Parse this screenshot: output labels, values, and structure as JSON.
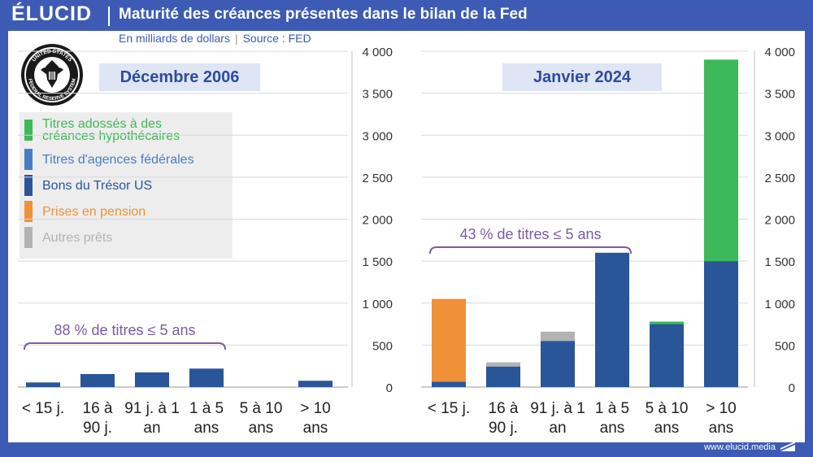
{
  "header": {
    "logo": "ÉLUCID",
    "title": "Maturité des créances présentes dans le bilan de la Fed"
  },
  "subtitle": {
    "unit": "En milliards de dollars",
    "separator": "|",
    "source": "Source : FED"
  },
  "footer": {
    "url": "www.elucid.media"
  },
  "seal": {
    "text_top": "UNITED STATES",
    "text_bottom": "FEDERAL RESERVE SYSTEM"
  },
  "colors": {
    "mbs": "#3cb95a",
    "agency": "#4a7cc4",
    "treasury": "#2a5598",
    "repo": "#f0913a",
    "other": "#b3b3b3",
    "annotation": "#7b5aa6",
    "period_bg": "#dfe5f5",
    "brand": "#3d5bb5"
  },
  "legend": [
    {
      "key": "mbs",
      "label_line1": "Titres adossés à des",
      "label_line2": "créances hypothécaires"
    },
    {
      "key": "agency",
      "label_line1": "Titres d'agences fédérales",
      "label_line2": ""
    },
    {
      "key": "treasury",
      "label_line1": "Bons du Trésor US",
      "label_line2": ""
    },
    {
      "key": "repo",
      "label_line1": "Prises en pension",
      "label_line2": ""
    },
    {
      "key": "other",
      "label_line1": "Autres prêts",
      "label_line2": ""
    }
  ],
  "chart_data": [
    {
      "type": "bar",
      "stacked": true,
      "title": "Décembre 2006",
      "ylim": [
        0,
        4000
      ],
      "yticks": [
        0,
        500,
        1000,
        1500,
        2000,
        2500,
        3000,
        3500,
        4000
      ],
      "ytick_labels": [
        "0",
        "500",
        "1 000",
        "1 500",
        "2 000",
        "2 500",
        "3 000",
        "3 500",
        "4 000"
      ],
      "categories": [
        [
          "< 15 j.",
          ""
        ],
        [
          "16 à",
          "90 j."
        ],
        [
          "91 j. à 1",
          "an"
        ],
        [
          "1 à 5",
          "ans"
        ],
        [
          "5 à 10",
          "ans"
        ],
        [
          "> 10",
          "ans"
        ]
      ],
      "series": [
        {
          "name": "Bons du Trésor US",
          "key": "treasury",
          "values": [
            55,
            155,
            175,
            220,
            0,
            75
          ]
        },
        {
          "name": "Titres d'agences fédérales",
          "key": "agency",
          "values": [
            0,
            0,
            0,
            0,
            0,
            0
          ]
        },
        {
          "name": "Titres adossés à des créances hypothécaires",
          "key": "mbs",
          "values": [
            0,
            0,
            0,
            0,
            0,
            0
          ]
        },
        {
          "name": "Prises en pension",
          "key": "repo",
          "values": [
            0,
            0,
            0,
            0,
            0,
            0
          ]
        },
        {
          "name": "Autres prêts",
          "key": "other",
          "values": [
            0,
            0,
            0,
            0,
            0,
            0
          ]
        }
      ],
      "annotation": {
        "text": "88 % de titres ≤ 5 ans",
        "from_category": 0,
        "to_category": 3
      }
    },
    {
      "type": "bar",
      "stacked": true,
      "title": "Janvier 2024",
      "ylim": [
        0,
        4000
      ],
      "yticks": [
        0,
        500,
        1000,
        1500,
        2000,
        2500,
        3000,
        3500,
        4000
      ],
      "ytick_labels": [
        "0",
        "500",
        "1 000",
        "1 500",
        "2 000",
        "2 500",
        "3 000",
        "3 500",
        "4 000"
      ],
      "categories": [
        [
          "< 15 j.",
          ""
        ],
        [
          "16 à",
          "90 j."
        ],
        [
          "91 j. à 1",
          "an"
        ],
        [
          "1 à 5",
          "ans"
        ],
        [
          "5 à 10",
          "ans"
        ],
        [
          "> 10",
          "ans"
        ]
      ],
      "series": [
        {
          "name": "Bons du Trésor US",
          "key": "treasury",
          "values": [
            65,
            245,
            550,
            1600,
            750,
            1500
          ]
        },
        {
          "name": "Titres d'agences fédérales",
          "key": "agency",
          "values": [
            0,
            0,
            0,
            0,
            0,
            0
          ]
        },
        {
          "name": "Titres adossés à des créances hypothécaires",
          "key": "mbs",
          "values": [
            0,
            0,
            0,
            0,
            30,
            2400
          ]
        },
        {
          "name": "Prises en pension",
          "key": "repo",
          "values": [
            985,
            0,
            0,
            0,
            0,
            0
          ]
        },
        {
          "name": "Autres prêts",
          "key": "other",
          "values": [
            0,
            50,
            110,
            0,
            0,
            0
          ]
        }
      ],
      "annotation": {
        "text": "43 % de titres ≤ 5 ans",
        "from_category": 0,
        "to_category": 3
      }
    }
  ]
}
